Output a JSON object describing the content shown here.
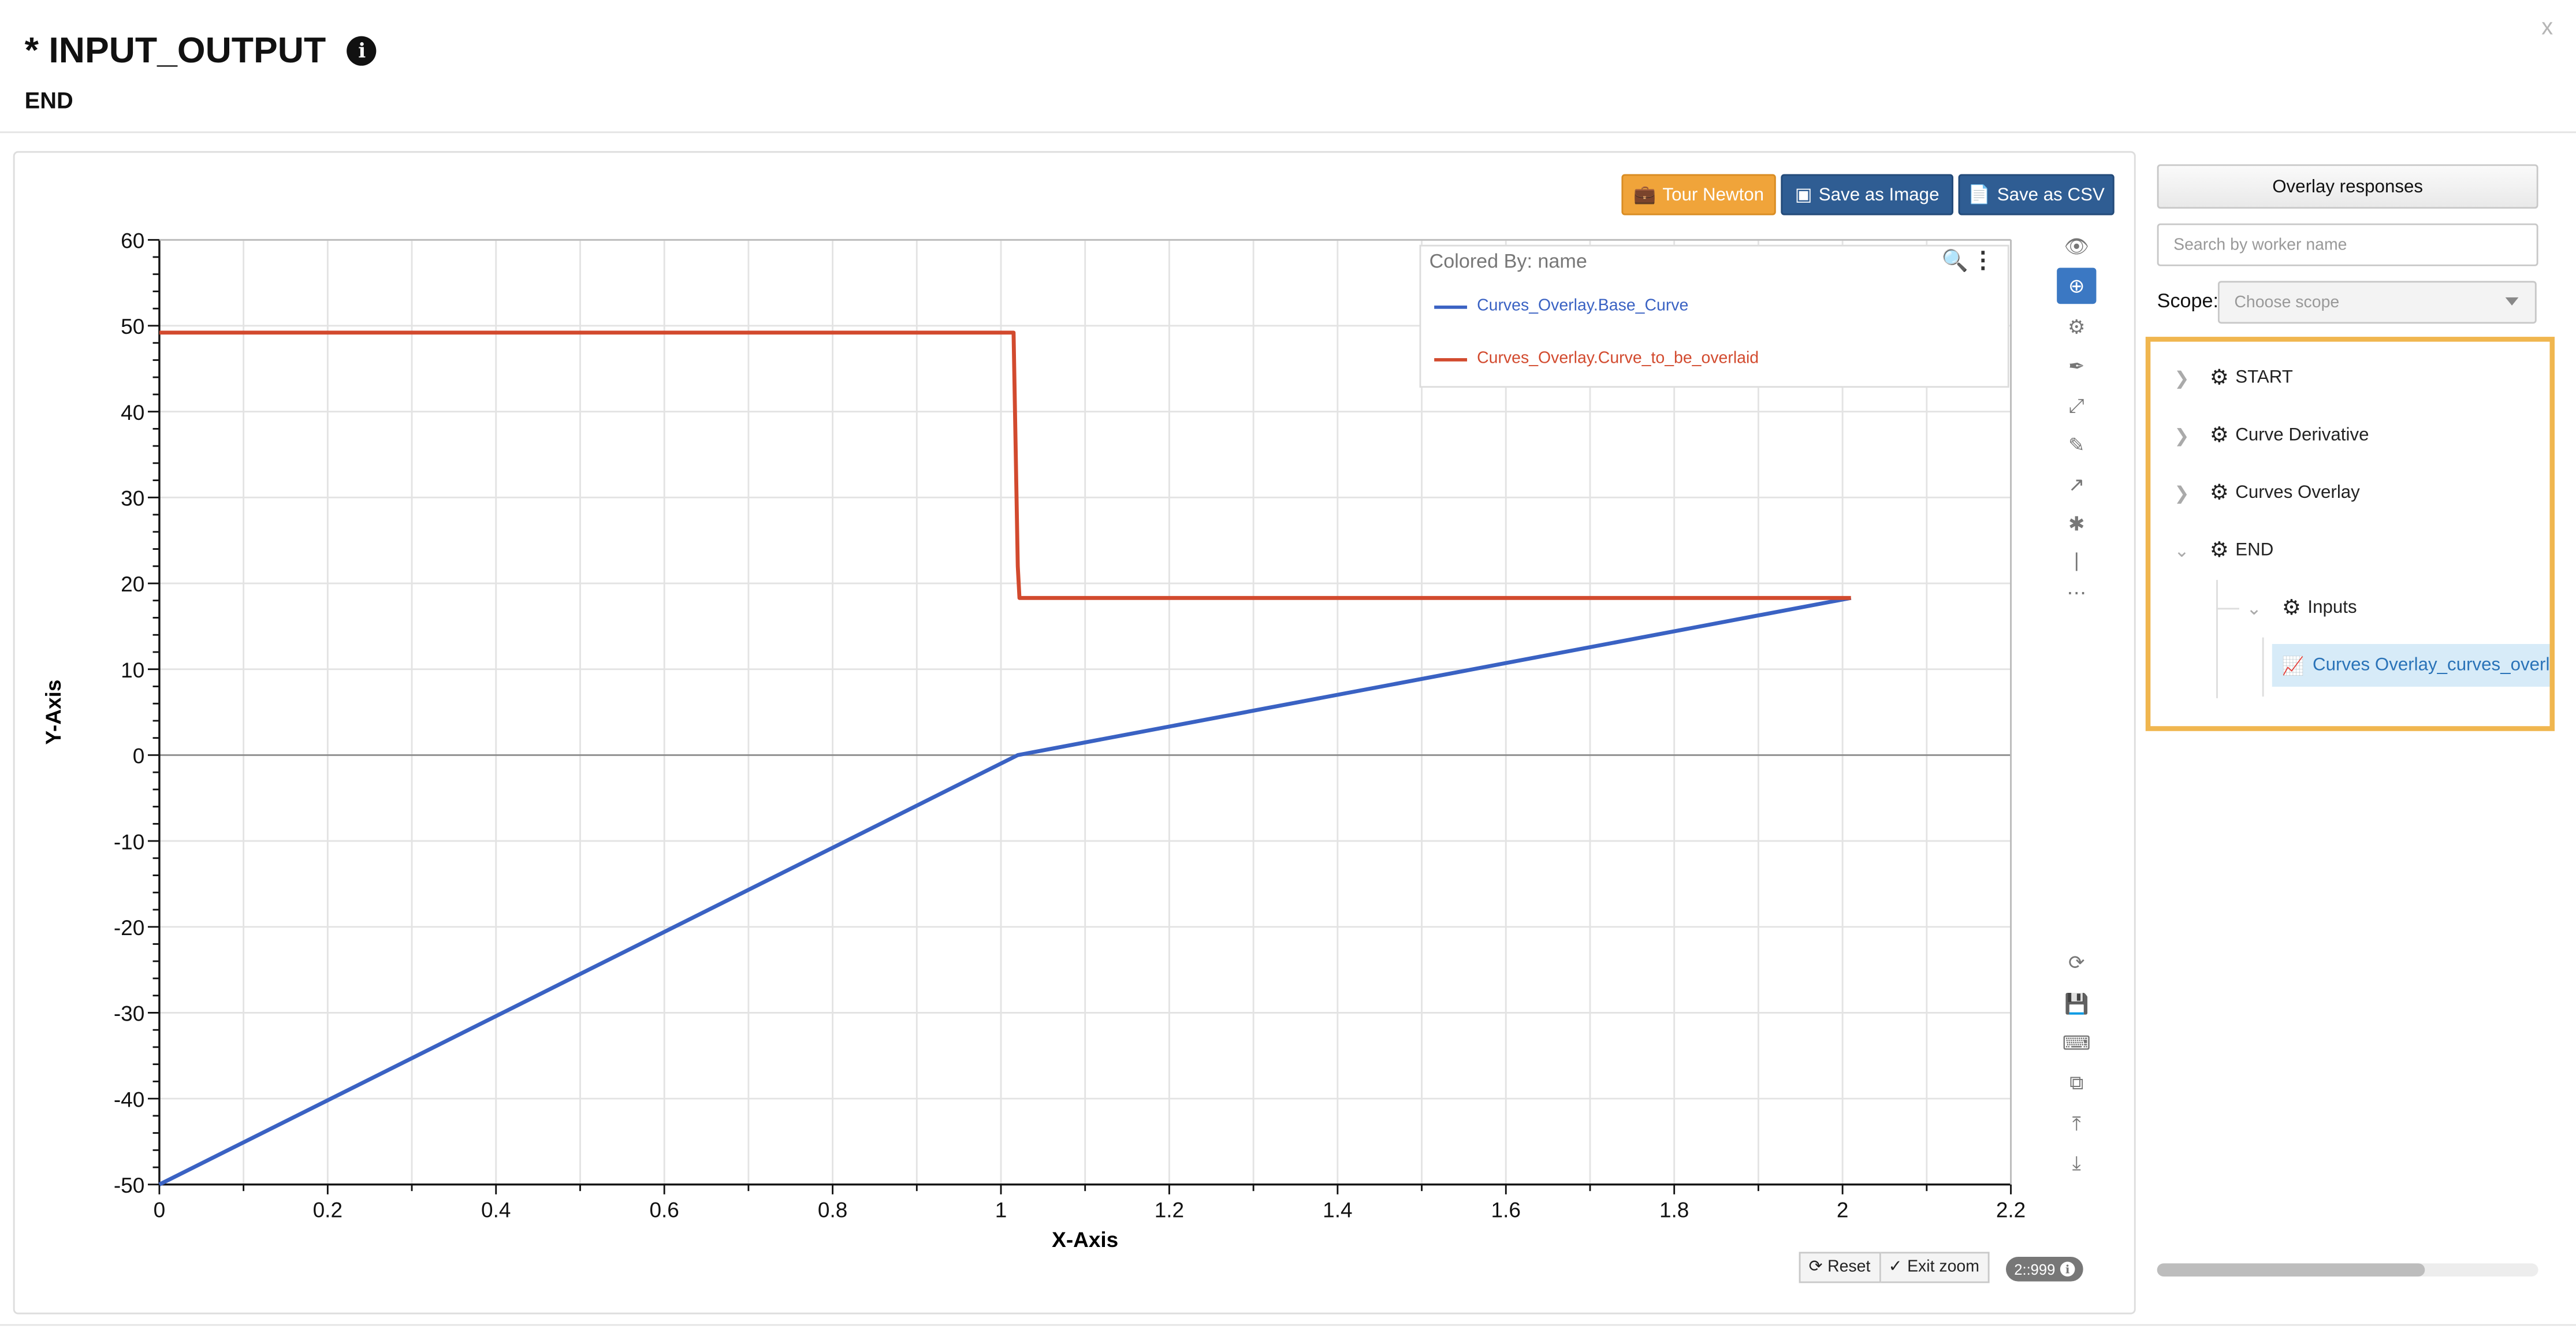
{
  "header": {
    "title": "* INPUT_OUTPUT",
    "subtitle": "END",
    "close_label": "x",
    "info_label": "i"
  },
  "toolbar": {
    "tour_label": "Tour Newton",
    "save_image_label": "Save as Image",
    "save_csv_label": "Save as CSV"
  },
  "legend": {
    "title": "Colored By: name",
    "items": [
      {
        "label": "Curves_Overlay.Base_Curve",
        "color": "#3a62c3"
      },
      {
        "label": "Curves_Overlay.Curve_to_be_overlaid",
        "color": "#d24a2e"
      }
    ]
  },
  "chart_data": {
    "type": "line",
    "xlabel": "X-Axis",
    "ylabel": "Y-Axis",
    "xlim": [
      0,
      2.2
    ],
    "ylim": [
      -50,
      60
    ],
    "x_ticks": [
      "0",
      "0.2",
      "0.4",
      "0.6",
      "0.8",
      "1",
      "1.2",
      "1.4",
      "1.6",
      "1.8",
      "2",
      "2.2"
    ],
    "y_ticks": [
      "60",
      "50",
      "40",
      "30",
      "20",
      "10",
      "0",
      "-10",
      "-20",
      "-30",
      "-40",
      "-50"
    ],
    "grid": true,
    "series": [
      {
        "name": "Curves_Overlay.Base_Curve",
        "color": "#3a62c3",
        "x": [
          0,
          1.02,
          2.01
        ],
        "y": [
          -50,
          0,
          18.3
        ]
      },
      {
        "name": "Curves_Overlay.Curve_to_be_overlaid",
        "color": "#d24a2e",
        "x": [
          0,
          1.015,
          1.02,
          1.022,
          2.01
        ],
        "y": [
          49.2,
          49.2,
          22,
          18.3,
          18.3
        ]
      }
    ]
  },
  "bottom_controls": {
    "reset_label": "Reset",
    "exit_zoom_label": "Exit zoom",
    "badge_label": "2::999"
  },
  "side_panel": {
    "overlay_button_label": "Overlay responses",
    "search_placeholder": "Search by worker name",
    "scope_label": "Scope:",
    "scope_placeholder": "Choose scope",
    "tree": {
      "start": "START",
      "curve_derivative": "Curve Derivative",
      "curves_overlay": "Curves Overlay",
      "end": "END",
      "inputs": "Inputs",
      "leaf": "Curves Overlay_curves_overlaid"
    }
  },
  "icons": {
    "tools": [
      "eye-icon",
      "zoom-icon",
      "gear-icon",
      "brush-icon",
      "fit-icon",
      "pencil-icon",
      "arrow-icon",
      "wand-icon",
      "line-icon",
      "more-icon"
    ],
    "tools_bottom": [
      "refresh-icon",
      "save-icon",
      "keyboard-icon",
      "copy-icon",
      "upload-icon",
      "download-icon"
    ]
  }
}
